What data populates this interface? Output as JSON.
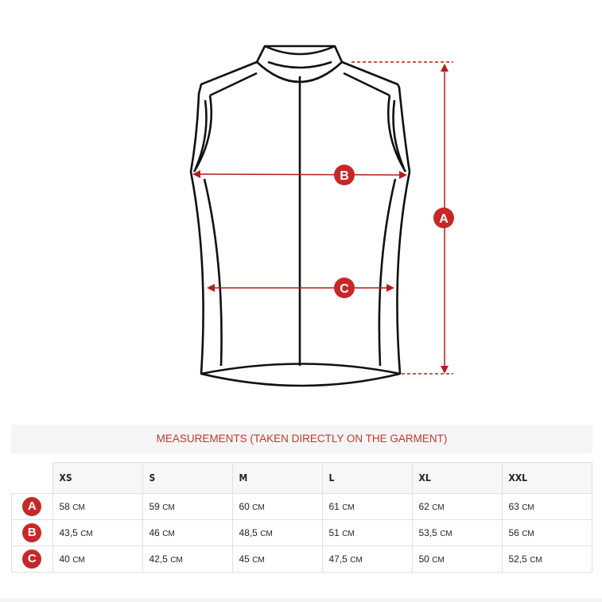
{
  "diagram": {
    "labels": {
      "a": "A",
      "b": "B",
      "c": "C"
    },
    "accent_color": "#c62828"
  },
  "title": "MEASUREMENTS (TAKEN DIRECTLY ON THE GARMENT)",
  "table": {
    "sizes": [
      "XS",
      "S",
      "M",
      "L",
      "XL",
      "XXL"
    ],
    "unit": "CM",
    "rows": [
      {
        "label": "A",
        "values": [
          "58",
          "59",
          "60",
          "61",
          "62",
          "63"
        ]
      },
      {
        "label": "B",
        "values": [
          "43,5",
          "46",
          "48,5",
          "51",
          "53,5",
          "56"
        ]
      },
      {
        "label": "C",
        "values": [
          "40",
          "42,5",
          "45",
          "47,5",
          "50",
          "52,5"
        ]
      }
    ]
  }
}
